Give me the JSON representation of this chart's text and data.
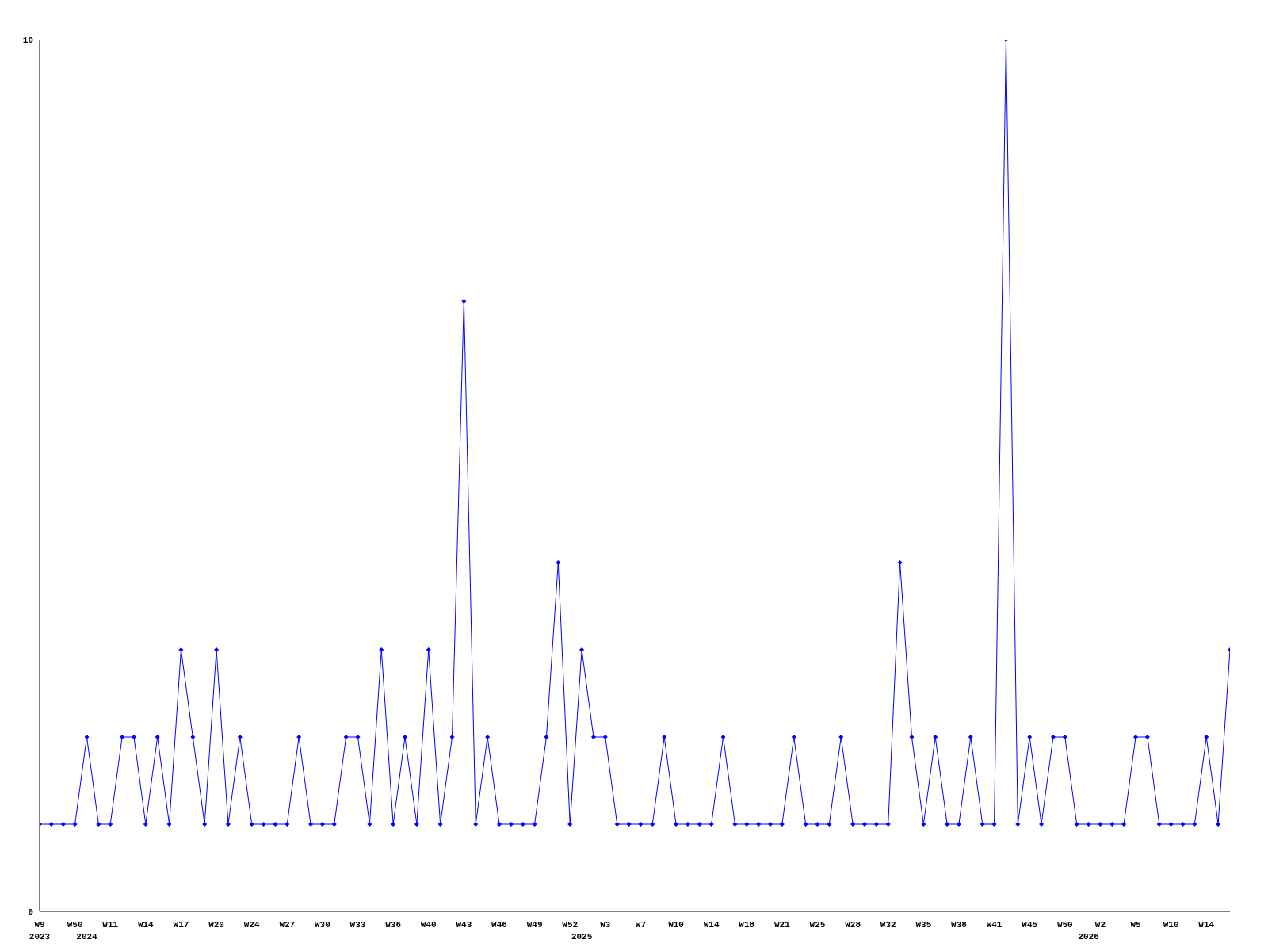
{
  "chart_data": {
    "type": "line",
    "categories": [
      "W9\n2023",
      null,
      null,
      "W50",
      "\n2024",
      null,
      "W11",
      null,
      null,
      "W14",
      null,
      null,
      "W17",
      null,
      null,
      "W20",
      null,
      null,
      "W24",
      null,
      null,
      "W27",
      null,
      null,
      "W30",
      null,
      null,
      "W33",
      null,
      null,
      "W36",
      null,
      null,
      "W40",
      null,
      null,
      "W43",
      null,
      null,
      "W46",
      null,
      null,
      "W49",
      null,
      null,
      "W52",
      "\n2025",
      null,
      "W3",
      null,
      null,
      "W7",
      null,
      null,
      "W10",
      null,
      null,
      "W14",
      null,
      null,
      "W18",
      null,
      null,
      "W21",
      null,
      null,
      "W25",
      null,
      null,
      "W28",
      null,
      null,
      "W32",
      null,
      null,
      "W35",
      null,
      null,
      "W38",
      null,
      null,
      "W41",
      null,
      null,
      "W45",
      null,
      null,
      "W50",
      null,
      "\n2026",
      "W2",
      null,
      null,
      "W5",
      null,
      null,
      "W10",
      null,
      null,
      "W14",
      null,
      null
    ],
    "series": [
      {
        "color": "#0000ff",
        "values": [
          1,
          1,
          1,
          1,
          2,
          1,
          1,
          2,
          2,
          1,
          2,
          1,
          3,
          2,
          1,
          3,
          1,
          2,
          1,
          1,
          1,
          1,
          2,
          1,
          1,
          1,
          2,
          2,
          1,
          3,
          1,
          2,
          1,
          3,
          1,
          2,
          7,
          1,
          2,
          1,
          1,
          1,
          1,
          2,
          4,
          1,
          3,
          2,
          2,
          1,
          1,
          1,
          1,
          2,
          1,
          1,
          1,
          1,
          2,
          1,
          1,
          1,
          1,
          1,
          2,
          1,
          1,
          1,
          2,
          1,
          1,
          1,
          1,
          4,
          2,
          1,
          2,
          1,
          1,
          2,
          1,
          1,
          10,
          1,
          2,
          1,
          2,
          2,
          1,
          1,
          1,
          1,
          1,
          2,
          2,
          1,
          1,
          1,
          1,
          2,
          1,
          3
        ]
      }
    ],
    "ylim": [
      0,
      10
    ],
    "yticks": [
      0,
      10
    ],
    "grid": false,
    "legend": false,
    "marker": "diamond",
    "line_style": "solid"
  }
}
